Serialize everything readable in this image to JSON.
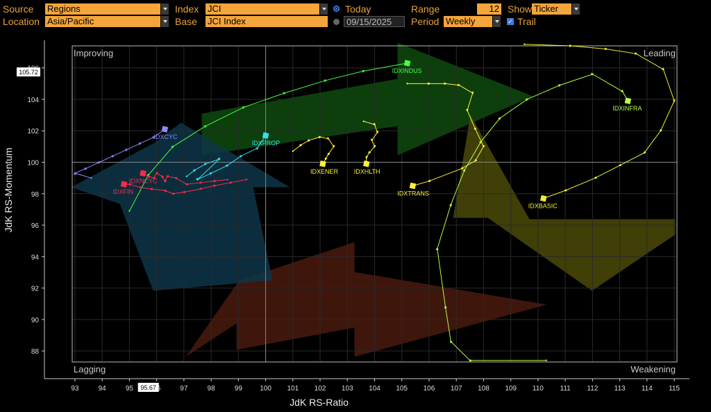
{
  "toolbar": {
    "source_label": "Source",
    "source_value": "Regions",
    "index_label": "Index",
    "index_value": "JCI",
    "today_label": "Today",
    "range_label": "Range",
    "range_value": "12",
    "show_label": "Show",
    "show_value": "Ticker",
    "location_label": "Location",
    "location_value": "Asia/Pacific",
    "base_label": "Base",
    "base_value": "JCI Index",
    "date_value": "09/15/2025",
    "period_label": "Period",
    "period_value": "Weekly",
    "trail_label": "Trail"
  },
  "colors": {
    "accent": "#f4a53b",
    "label": "#e8a23a"
  },
  "chart_data": {
    "type": "scatter",
    "xlabel": "JdK RS-Ratio",
    "ylabel": "JdK RS-Momentum",
    "xlim": [
      92.9,
      115.1
    ],
    "ylim": [
      87.3,
      107.4
    ],
    "xticks": [
      93,
      94,
      95,
      96,
      97,
      98,
      99,
      100,
      101,
      102,
      103,
      104,
      105,
      106,
      107,
      108,
      109,
      110,
      111,
      112,
      113,
      114,
      115
    ],
    "yticks": [
      88,
      90,
      92,
      94,
      96,
      98,
      100,
      102,
      104,
      106
    ],
    "quadrants": {
      "top_left": "Improving",
      "top_right": "Leading",
      "bottom_left": "Lagging",
      "bottom_right": "Weakening"
    },
    "crosshair_x": "95.67",
    "crosshair_y": "105.72",
    "series": [
      {
        "name": "IDXINDUS",
        "color": "#45ff45",
        "x": [
          95.0,
          95.7,
          96.6,
          97.8,
          99.2,
          100.7,
          102.2,
          103.6,
          105.2
        ],
        "y": [
          96.9,
          99.2,
          101.0,
          102.3,
          103.5,
          104.4,
          105.2,
          105.8,
          106.3
        ]
      },
      {
        "name": "IDXCYC",
        "color": "#8a8aff",
        "x": [
          93.6,
          93.0,
          93.4,
          93.9,
          94.4,
          94.9,
          95.4,
          95.9,
          96.3
        ],
        "y": [
          99.0,
          99.3,
          99.6,
          100.0,
          100.4,
          100.8,
          101.2,
          101.6,
          102.1
        ]
      },
      {
        "name": "IDXPROP",
        "color": "#32e0f0",
        "x": [
          97.1,
          97.4,
          97.8,
          98.3,
          97.5,
          98.0,
          98.6,
          99.1,
          99.7,
          100.0
        ],
        "y": [
          99.1,
          99.5,
          99.9,
          100.2,
          98.9,
          99.3,
          99.8,
          100.4,
          100.9,
          101.7
        ]
      },
      {
        "name": "IDXNCYC",
        "color": "#ff2a4a",
        "x": [
          98.6,
          98.1,
          97.6,
          97.1,
          96.7,
          96.4,
          96.3,
          96.2,
          96.0,
          95.9,
          95.7,
          95.5
        ],
        "y": [
          98.9,
          98.8,
          98.7,
          98.6,
          99.0,
          99.1,
          98.8,
          99.1,
          99.3,
          99.0,
          99.1,
          99.3
        ]
      },
      {
        "name": "IDXFIN",
        "color": "#ff2a4a",
        "x": [
          99.3,
          98.7,
          98.1,
          97.6,
          97.0,
          96.6,
          96.3,
          95.8,
          95.4,
          95.0,
          94.8
        ],
        "y": [
          98.9,
          98.7,
          98.5,
          98.3,
          98.1,
          98.0,
          98.2,
          98.3,
          98.4,
          98.6,
          98.6
        ]
      },
      {
        "name": "IDXENER",
        "color": "#fff23a",
        "x": [
          101.0,
          101.3,
          101.6,
          102.0,
          102.3,
          102.5,
          102.3,
          102.2,
          102.1
        ],
        "y": [
          100.7,
          101.1,
          101.4,
          101.6,
          101.5,
          101.0,
          100.5,
          100.2,
          99.9
        ]
      },
      {
        "name": "IDXHLTH",
        "color": "#fff23a",
        "x": [
          103.6,
          104.0,
          104.1,
          103.9,
          104.0,
          103.8,
          103.7,
          103.7
        ],
        "y": [
          102.6,
          102.4,
          101.9,
          101.4,
          101.0,
          100.6,
          100.3,
          99.9
        ]
      },
      {
        "name": "IDXTRANS",
        "color": "#fff23a",
        "x": [
          105.2,
          106.0,
          106.6,
          107.1,
          107.6,
          107.4,
          107.7,
          108.0,
          107.7,
          107.2,
          106.0,
          105.4
        ],
        "y": [
          105.0,
          105.0,
          105.0,
          104.9,
          104.4,
          103.3,
          102.1,
          101.0,
          100.1,
          99.6,
          98.8,
          98.5
        ]
      },
      {
        "name": "IDXINFRA",
        "color": "#b8ff45",
        "x": [
          110.3,
          107.5,
          106.8,
          106.6,
          106.3,
          106.8,
          107.3,
          107.9,
          108.6,
          109.6,
          110.8,
          112.0,
          113.1,
          113.3
        ],
        "y": [
          87.4,
          87.4,
          88.6,
          90.8,
          94.5,
          97.3,
          99.5,
          101.3,
          102.8,
          104.0,
          104.9,
          105.6,
          104.5,
          103.9
        ]
      },
      {
        "name": "IDXBASIC",
        "color": "#f0f030",
        "x": [
          109.5,
          111.2,
          112.5,
          113.6,
          114.6,
          115.0,
          114.5,
          113.9,
          113.0,
          112.1,
          111.0,
          110.2
        ],
        "y": [
          107.5,
          107.4,
          107.2,
          106.9,
          105.9,
          103.9,
          102.0,
          100.6,
          99.8,
          99.0,
          98.2,
          97.7
        ]
      }
    ]
  }
}
